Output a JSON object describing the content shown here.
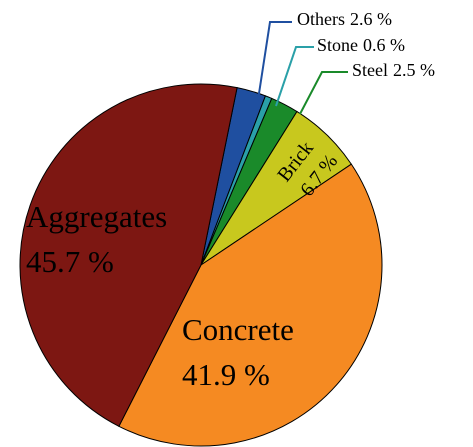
{
  "chart_data": {
    "type": "pie",
    "categories": [
      "Others",
      "Stone",
      "Steel",
      "Brick",
      "Concrete",
      "Aggregates"
    ],
    "values": [
      2.6,
      0.6,
      2.5,
      6.7,
      41.9,
      45.7
    ],
    "value_labels": [
      "2.6 %",
      "0.6 %",
      "2.5 %",
      "6.7 %",
      "41.9 %",
      "45.7 %"
    ],
    "colors": [
      "#1f4fa0",
      "#2aa0a8",
      "#1a8a2a",
      "#c8c81e",
      "#f58a22",
      "#7d1712"
    ]
  }
}
